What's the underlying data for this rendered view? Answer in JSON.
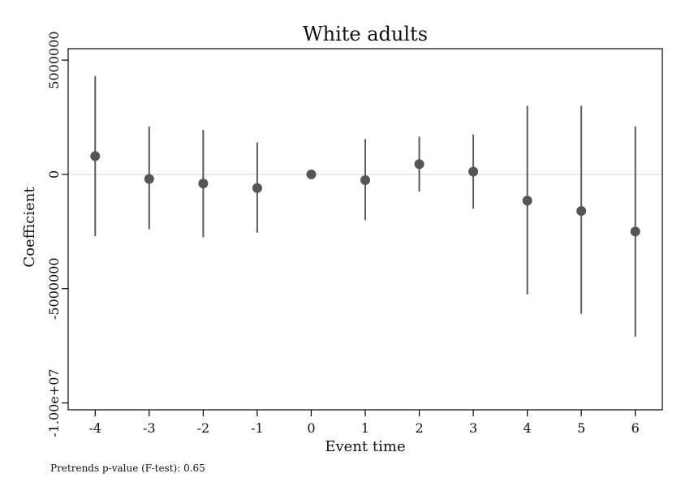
{
  "note": "Pretrends p-value (F-test):  0.65",
  "colors": {
    "marker": "#555555",
    "ci": "#5a5a5a",
    "zero_line": "#dddddd",
    "frame": "#000000"
  },
  "chart_data": {
    "type": "scatter",
    "title": "White adults",
    "xlabel": "Event time",
    "ylabel": "Coefficient",
    "xlim": [
      -4.5,
      6.5
    ],
    "ylim": [
      -10300000,
      5500000
    ],
    "x_ticks": [
      -4,
      -3,
      -2,
      -1,
      0,
      1,
      2,
      3,
      4,
      5,
      6
    ],
    "x_tick_labels": [
      "-4",
      "-3",
      "-2",
      "-1",
      "0",
      "1",
      "2",
      "3",
      "4",
      "5",
      "6"
    ],
    "y_ticks": [
      5000000,
      0,
      -5000000,
      -10000000
    ],
    "y_tick_labels": [
      "5000000",
      "0",
      "-5000000",
      "-1.00e+07"
    ],
    "reference_line_y": 0,
    "grid": false,
    "series": [
      {
        "points": [
          {
            "x": -4,
            "y": 800000,
            "ci_low": -2700000,
            "ci_high": 4300000
          },
          {
            "x": -3,
            "y": -200000,
            "ci_low": -2400000,
            "ci_high": 2100000
          },
          {
            "x": -2,
            "y": -400000,
            "ci_low": -2750000,
            "ci_high": 1950000
          },
          {
            "x": -1,
            "y": -600000,
            "ci_low": -2550000,
            "ci_high": 1400000
          },
          {
            "x": 0,
            "y": 0,
            "ci_low": 0,
            "ci_high": 0
          },
          {
            "x": 1,
            "y": -250000,
            "ci_low": -2000000,
            "ci_high": 1550000
          },
          {
            "x": 2,
            "y": 450000,
            "ci_low": -750000,
            "ci_high": 1650000
          },
          {
            "x": 3,
            "y": 120000,
            "ci_low": -1500000,
            "ci_high": 1750000
          },
          {
            "x": 4,
            "y": -1150000,
            "ci_low": -5250000,
            "ci_high": 3000000
          },
          {
            "x": 5,
            "y": -1600000,
            "ci_low": -6100000,
            "ci_high": 3000000
          },
          {
            "x": 6,
            "y": -2500000,
            "ci_low": -7100000,
            "ci_high": 2100000
          }
        ]
      }
    ]
  }
}
